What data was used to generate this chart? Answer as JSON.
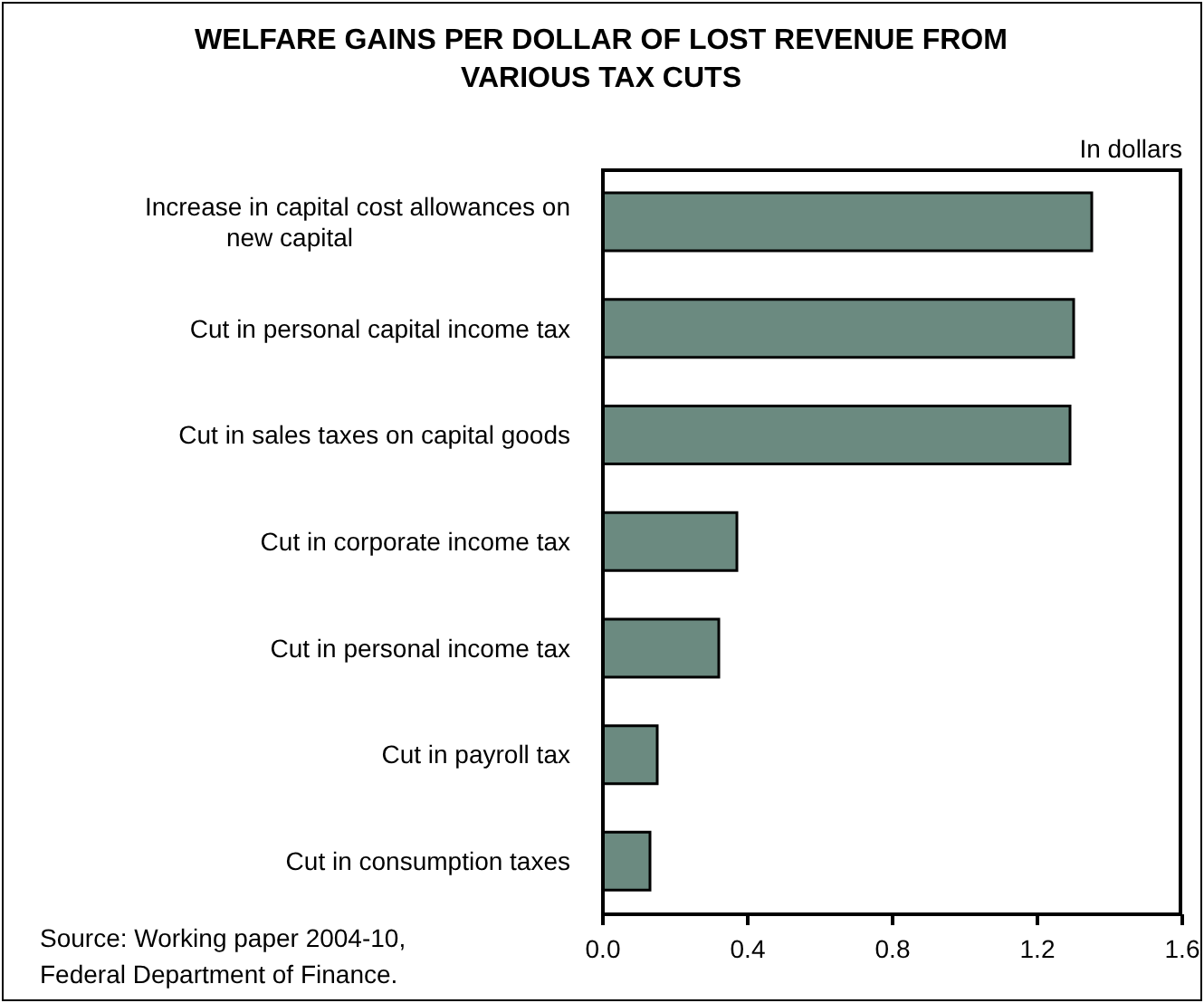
{
  "chart_data": {
    "type": "bar",
    "orientation": "horizontal",
    "title": "WELFARE GAINS PER DOLLAR OF LOST REVENUE FROM VARIOUS TAX CUTS",
    "xlabel": "In dollars",
    "categories": [
      "Increase in capital cost allowances on new capital",
      "Cut in personal capital income tax",
      "Cut in sales taxes on capital goods",
      "Cut in corporate income tax",
      "Cut in personal income tax",
      "Cut in payroll tax",
      "Cut in consumption taxes"
    ],
    "values": [
      1.35,
      1.3,
      1.29,
      0.37,
      0.32,
      0.15,
      0.13
    ],
    "color": "#6b8a80",
    "xlim": [
      0,
      1.6
    ],
    "xticks": [
      {
        "value": 0,
        "label": "0.0"
      },
      {
        "value": 0.4,
        "label": "0.4"
      },
      {
        "value": 0.8,
        "label": "0.8"
      },
      {
        "value": 1.2,
        "label": "1.2"
      },
      {
        "value": 1.6,
        "label": "1.6"
      }
    ],
    "grid": false,
    "annotations": [
      "Source: Working paper 2004-10, Federal Department of Finance."
    ]
  }
}
